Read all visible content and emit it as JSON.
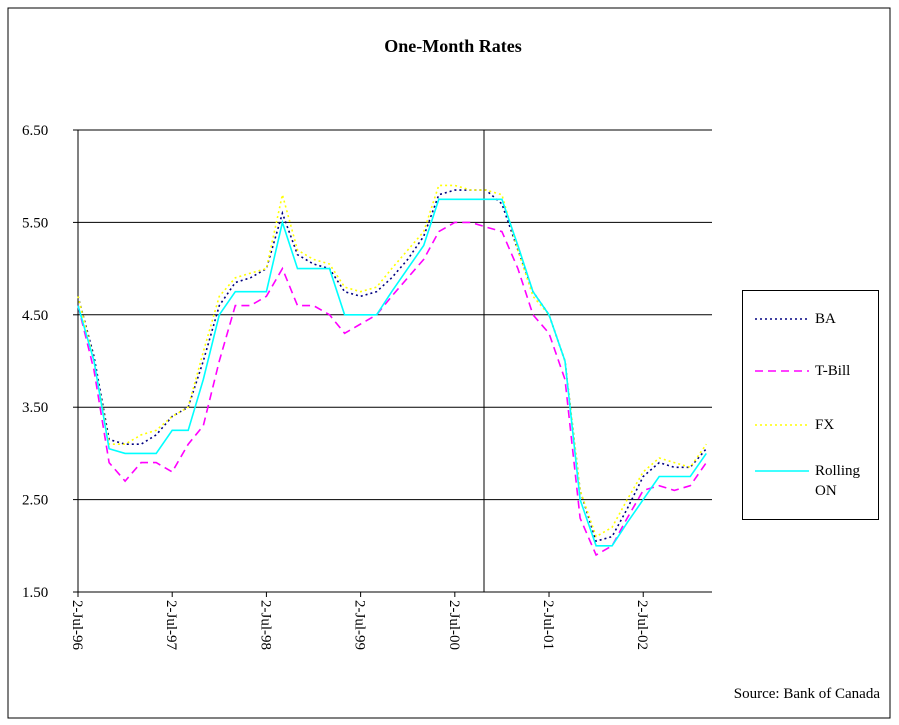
{
  "chart_data": {
    "type": "line",
    "title": "One-Month Rates",
    "source": "Source: Bank of Canada",
    "x": [
      1996.5,
      1996.67,
      1996.83,
      1997.0,
      1997.17,
      1997.33,
      1997.5,
      1997.67,
      1997.83,
      1998.0,
      1998.17,
      1998.33,
      1998.5,
      1998.67,
      1998.83,
      1999.0,
      1999.17,
      1999.33,
      1999.5,
      1999.67,
      1999.83,
      2000.0,
      2000.17,
      2000.33,
      2000.5,
      2000.67,
      2000.83,
      2001.0,
      2001.17,
      2001.33,
      2001.5,
      2001.67,
      2001.83,
      2002.0,
      2002.17,
      2002.33,
      2002.5,
      2002.67,
      2002.83,
      2003.0,
      2003.17
    ],
    "series": [
      {
        "name": "BA",
        "color": "#000080",
        "line_style": "dotted",
        "values": [
          4.7,
          4.05,
          3.15,
          3.1,
          3.1,
          3.2,
          3.4,
          3.5,
          4.0,
          4.6,
          4.85,
          4.9,
          5.0,
          5.6,
          5.15,
          5.05,
          5.0,
          4.75,
          4.7,
          4.75,
          4.9,
          5.1,
          5.35,
          5.8,
          5.85,
          5.85,
          5.85,
          5.7,
          5.2,
          4.75,
          4.5,
          4.0,
          2.6,
          2.05,
          2.1,
          2.4,
          2.75,
          2.9,
          2.85,
          2.85,
          3.05
        ]
      },
      {
        "name": "T-Bill",
        "color": "#ff00ff",
        "line_style": "dashed",
        "values": [
          4.6,
          3.9,
          2.9,
          2.7,
          2.9,
          2.9,
          2.8,
          3.1,
          3.3,
          4.0,
          4.6,
          4.6,
          4.7,
          5.0,
          4.6,
          4.6,
          4.5,
          4.3,
          4.4,
          4.5,
          4.7,
          4.9,
          5.1,
          5.4,
          5.5,
          5.5,
          5.45,
          5.4,
          5.0,
          4.5,
          4.3,
          3.8,
          2.3,
          1.9,
          2.0,
          2.3,
          2.6,
          2.65,
          2.6,
          2.65,
          2.9
        ]
      },
      {
        "name": "FX",
        "color": "#ffff00",
        "line_style": "dotted",
        "values": [
          4.7,
          4.0,
          3.1,
          3.1,
          3.2,
          3.25,
          3.4,
          3.5,
          4.1,
          4.7,
          4.9,
          4.95,
          5.0,
          5.8,
          5.2,
          5.1,
          5.05,
          4.8,
          4.75,
          4.8,
          5.0,
          5.2,
          5.4,
          5.9,
          5.9,
          5.85,
          5.85,
          5.8,
          5.2,
          4.7,
          4.5,
          4.0,
          2.6,
          2.1,
          2.2,
          2.5,
          2.8,
          2.95,
          2.9,
          2.85,
          3.1
        ]
      },
      {
        "name": "Rolling ON",
        "color": "#00ffff",
        "line_style": "solid",
        "values": [
          4.6,
          4.0,
          3.05,
          3.0,
          3.0,
          3.0,
          3.25,
          3.25,
          3.8,
          4.5,
          4.75,
          4.75,
          4.75,
          5.5,
          5.0,
          5.0,
          5.0,
          4.5,
          4.5,
          4.5,
          4.75,
          5.0,
          5.25,
          5.75,
          5.75,
          5.75,
          5.75,
          5.75,
          5.25,
          4.75,
          4.5,
          4.0,
          2.5,
          2.0,
          2.0,
          2.25,
          2.5,
          2.75,
          2.75,
          2.75,
          3.0
        ]
      }
    ],
    "xlim": [
      1996.5,
      2003.23
    ],
    "xticks": [
      {
        "value": 1996.5,
        "label": "2-Jul-96"
      },
      {
        "value": 1997.5,
        "label": "2-Jul-97"
      },
      {
        "value": 1998.5,
        "label": "2-Jul-98"
      },
      {
        "value": 1999.5,
        "label": "2-Jul-99"
      },
      {
        "value": 2000.5,
        "label": "2-Jul-00"
      },
      {
        "value": 2001.5,
        "label": "2-Jul-01"
      },
      {
        "value": 2002.5,
        "label": "2-Jul-02"
      }
    ],
    "ylim": [
      1.5,
      6.5
    ],
    "yticks": [
      {
        "value": 1.5,
        "label": "1.50"
      },
      {
        "value": 2.5,
        "label": "2.50"
      },
      {
        "value": 3.5,
        "label": "3.50"
      },
      {
        "value": 4.5,
        "label": "4.50"
      },
      {
        "value": 5.5,
        "label": "5.50"
      },
      {
        "value": 6.5,
        "label": "6.50"
      }
    ],
    "grid": true,
    "legend": "right"
  }
}
